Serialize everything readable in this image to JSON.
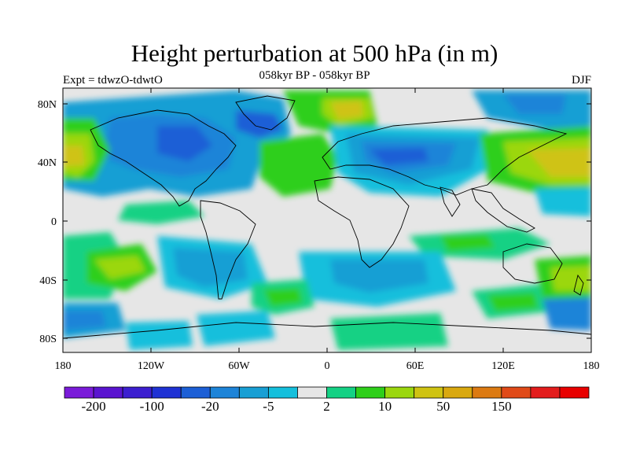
{
  "title": "Height perturbation at 500 hPa (in m)",
  "subtitle": "058kyr BP - 058kyr BP",
  "left_label": "Expt = tdwzO-tdwtO",
  "right_label": "DJF",
  "lat_ticks": [
    "80N",
    "40N",
    "0",
    "40S",
    "80S"
  ],
  "lon_ticks": [
    "180",
    "120W",
    "60W",
    "0",
    "60E",
    "120E",
    "180"
  ],
  "colorbar": {
    "colors": [
      "#7a1bd9",
      "#5a14d0",
      "#3c1fd0",
      "#1f32d4",
      "#1c5fd6",
      "#1d84d8",
      "#189fd4",
      "#14bfdc",
      "#e6e6e6",
      "#14d184",
      "#2ecf1a",
      "#9bd70e",
      "#cfc312",
      "#d9a80f",
      "#dc7a12",
      "#e04a18",
      "#e31c1c",
      "#e80000"
    ],
    "labels": [
      "-200",
      "-100",
      "-20",
      "-5",
      "2",
      "10",
      "50",
      "150"
    ]
  },
  "colors": {
    "neutral": "#e6e6e6",
    "coast": "#000000"
  }
}
